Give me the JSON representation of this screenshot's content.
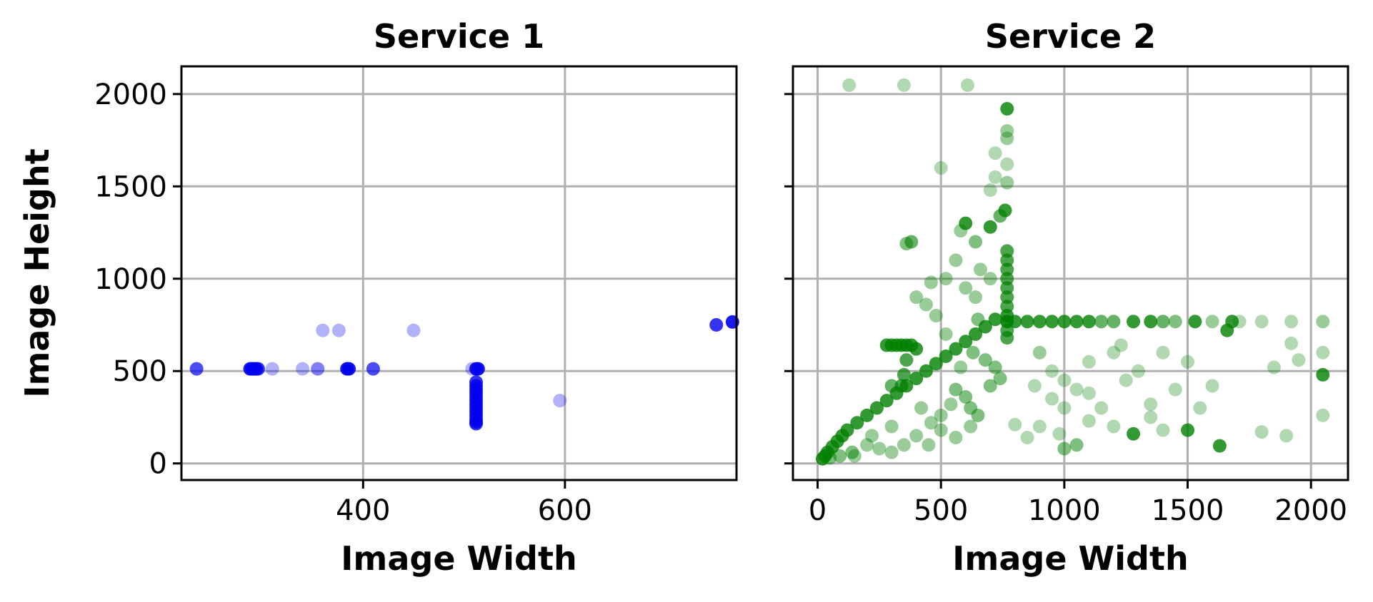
{
  "chart_data": [
    {
      "type": "scatter",
      "title": "Service 1",
      "xlabel": "Image Width",
      "ylabel": "Image Height",
      "xlim": [
        220,
        770
      ],
      "ylim": [
        -90,
        2150
      ],
      "xticks": [
        400,
        600
      ],
      "yticks": [
        0,
        500,
        1000,
        1500,
        2000
      ],
      "grid": true,
      "series": [
        {
          "color": "#0000ee",
          "points": [
            [
              235,
              512
            ],
            [
              288,
              512
            ],
            [
              290,
              512
            ],
            [
              292,
              512
            ],
            [
              294,
              512
            ],
            [
              296,
              512
            ],
            [
              310,
              512
            ],
            [
              340,
              512
            ],
            [
              355,
              512
            ],
            [
              360,
              720
            ],
            [
              376,
              720
            ],
            [
              384,
              512
            ],
            [
              386,
              512
            ],
            [
              410,
              512
            ],
            [
              450,
              720
            ],
            [
              508,
              512
            ],
            [
              512,
              512
            ],
            [
              514,
              512
            ],
            [
              512,
              440
            ],
            [
              512,
              420
            ],
            [
              512,
              400
            ],
            [
              512,
              380
            ],
            [
              512,
              360
            ],
            [
              512,
              340
            ],
            [
              512,
              320
            ],
            [
              512,
              300
            ],
            [
              512,
              280
            ],
            [
              512,
              260
            ],
            [
              512,
              240
            ],
            [
              512,
              225
            ],
            [
              512,
              215
            ],
            [
              595,
              340
            ],
            [
              750,
              750
            ],
            [
              766,
              766
            ]
          ],
          "opacities": [
            0.7,
            0.9,
            0.9,
            0.9,
            0.9,
            0.8,
            0.3,
            0.3,
            0.5,
            0.3,
            0.3,
            0.9,
            0.9,
            0.7,
            0.3,
            0.3,
            0.9,
            0.9,
            0.8,
            0.8,
            0.8,
            0.8,
            0.8,
            0.8,
            0.8,
            0.8,
            0.8,
            0.8,
            0.8,
            0.8,
            0.8,
            0.3,
            0.8,
            0.9
          ]
        }
      ]
    },
    {
      "type": "scatter",
      "title": "Service 2",
      "xlabel": "Image Width",
      "ylabel": "",
      "xlim": [
        -100,
        2150
      ],
      "ylim": [
        -90,
        2150
      ],
      "xticks": [
        0,
        500,
        1000,
        1500,
        2000
      ],
      "yticks": [
        0,
        500,
        1000,
        1500,
        2000
      ],
      "grid": true,
      "series": [
        {
          "color": "#007f00",
          "points": [
            [
              128,
              2048
            ],
            [
              350,
              2048
            ],
            [
              608,
              2048
            ],
            [
              768,
              1920
            ],
            [
              768,
              1800
            ],
            [
              768,
              1760
            ],
            [
              720,
              1680
            ],
            [
              768,
              1620
            ],
            [
              500,
              1600
            ],
            [
              720,
              1550
            ],
            [
              768,
              1520
            ],
            [
              700,
              1480
            ],
            [
              600,
              1300
            ],
            [
              760,
              1370
            ],
            [
              740,
              1340
            ],
            [
              580,
              1260
            ],
            [
              700,
              1280
            ],
            [
              640,
              1200
            ],
            [
              380,
              1200
            ],
            [
              360,
              1190
            ],
            [
              768,
              1150
            ],
            [
              768,
              1100
            ],
            [
              768,
              1050
            ],
            [
              768,
              1000
            ],
            [
              768,
              950
            ],
            [
              768,
              900
            ],
            [
              768,
              850
            ],
            [
              768,
              800
            ],
            [
              768,
              768
            ],
            [
              768,
              720
            ],
            [
              768,
              680
            ],
            [
              720,
              780
            ],
            [
              680,
              740
            ],
            [
              640,
              700
            ],
            [
              600,
              660
            ],
            [
              560,
              620
            ],
            [
              520,
              580
            ],
            [
              480,
              540
            ],
            [
              440,
              500
            ],
            [
              400,
              460
            ],
            [
              360,
              420
            ],
            [
              320,
              380
            ],
            [
              280,
              340
            ],
            [
              240,
              300
            ],
            [
              200,
              260
            ],
            [
              160,
              220
            ],
            [
              120,
              180
            ],
            [
              100,
              150
            ],
            [
              80,
              120
            ],
            [
              60,
              90
            ],
            [
              40,
              60
            ],
            [
              30,
              40
            ],
            [
              20,
              25
            ],
            [
              50,
              30
            ],
            [
              90,
              40
            ],
            [
              140,
              60
            ],
            [
              800,
              768
            ],
            [
              850,
              768
            ],
            [
              900,
              768
            ],
            [
              950,
              768
            ],
            [
              1000,
              768
            ],
            [
              1050,
              768
            ],
            [
              1100,
              768
            ],
            [
              1150,
              768
            ],
            [
              1200,
              768
            ],
            [
              1280,
              768
            ],
            [
              1350,
              768
            ],
            [
              1400,
              768
            ],
            [
              1450,
              768
            ],
            [
              1530,
              768
            ],
            [
              1600,
              768
            ],
            [
              1680,
              768
            ],
            [
              1710,
              768
            ],
            [
              1800,
              768
            ],
            [
              1920,
              768
            ],
            [
              2048,
              768
            ],
            [
              1660,
              720
            ],
            [
              280,
              640
            ],
            [
              300,
              640
            ],
            [
              320,
              640
            ],
            [
              340,
              640
            ],
            [
              360,
              640
            ],
            [
              380,
              640
            ],
            [
              400,
              620
            ],
            [
              360,
              560
            ],
            [
              350,
              480
            ],
            [
              340,
              420
            ],
            [
              300,
              420
            ],
            [
              640,
              900
            ],
            [
              650,
              780
            ],
            [
              630,
              600
            ],
            [
              560,
              400
            ],
            [
              600,
              360
            ],
            [
              620,
              300
            ],
            [
              650,
              260
            ],
            [
              700,
              420
            ],
            [
              740,
              460
            ],
            [
              720,
              520
            ],
            [
              680,
              560
            ],
            [
              500,
              260
            ],
            [
              460,
              220
            ],
            [
              420,
              300
            ],
            [
              540,
              320
            ],
            [
              580,
              520
            ],
            [
              520,
              700
            ],
            [
              480,
              800
            ],
            [
              440,
              860
            ],
            [
              460,
              980
            ],
            [
              400,
              900
            ],
            [
              520,
              1000
            ],
            [
              560,
              1100
            ],
            [
              600,
              950
            ],
            [
              660,
              1050
            ],
            [
              700,
              1000
            ],
            [
              900,
              600
            ],
            [
              950,
              500
            ],
            [
              1000,
              450
            ],
            [
              1050,
              400
            ],
            [
              1100,
              550
            ],
            [
              1150,
              300
            ],
            [
              1200,
              600
            ],
            [
              1250,
              450
            ],
            [
              1300,
              500
            ],
            [
              1350,
              250
            ],
            [
              1400,
              600
            ],
            [
              1450,
              400
            ],
            [
              1500,
              550
            ],
            [
              1550,
              300
            ],
            [
              1600,
              420
            ],
            [
              1900,
              150
            ],
            [
              1800,
              170
            ],
            [
              1630,
              95
            ],
            [
              1280,
              160
            ],
            [
              1200,
              200
            ],
            [
              1100,
              230
            ],
            [
              1050,
              100
            ],
            [
              1000,
              80
            ],
            [
              980,
              160
            ],
            [
              900,
              200
            ],
            [
              850,
              140
            ],
            [
              800,
              210
            ],
            [
              2048,
              480
            ],
            [
              2048,
              260
            ],
            [
              2048,
              600
            ],
            [
              1950,
              560
            ],
            [
              1920,
              650
            ],
            [
              1850,
              520
            ],
            [
              1400,
              180
            ],
            [
              1500,
              180
            ],
            [
              1350,
              320
            ],
            [
              1230,
              640
            ],
            [
              1100,
              380
            ],
            [
              1000,
              300
            ],
            [
              950,
              350
            ],
            [
              880,
              420
            ],
            [
              200,
              100
            ],
            [
              250,
              80
            ],
            [
              300,
              60
            ],
            [
              350,
              100
            ],
            [
              150,
              40
            ],
            [
              220,
              150
            ],
            [
              300,
              200
            ],
            [
              400,
              150
            ],
            [
              450,
              100
            ],
            [
              500,
              180
            ],
            [
              560,
              140
            ],
            [
              620,
              200
            ]
          ],
          "opacities": [
            0.3,
            0.3,
            0.3,
            0.8,
            0.4,
            0.4,
            0.3,
            0.3,
            0.3,
            0.3,
            0.4,
            0.3,
            0.8,
            0.8,
            0.6,
            0.4,
            0.8,
            0.5,
            0.6,
            0.5,
            0.7,
            0.7,
            0.7,
            0.7,
            0.7,
            0.7,
            0.7,
            0.8,
            0.9,
            0.7,
            0.7,
            0.8,
            0.8,
            0.8,
            0.8,
            0.8,
            0.8,
            0.8,
            0.8,
            0.8,
            0.8,
            0.8,
            0.8,
            0.8,
            0.8,
            0.8,
            0.8,
            0.8,
            0.8,
            0.8,
            0.8,
            0.8,
            0.8,
            0.5,
            0.5,
            0.5,
            0.8,
            0.8,
            0.8,
            0.8,
            0.8,
            0.8,
            0.8,
            0.6,
            0.6,
            0.8,
            0.8,
            0.6,
            0.5,
            0.8,
            0.4,
            0.8,
            0.3,
            0.3,
            0.3,
            0.4,
            0.8,
            0.8,
            0.8,
            0.8,
            0.8,
            0.8,
            0.8,
            0.8,
            0.7,
            0.7,
            0.7,
            0.6,
            0.4,
            0.5,
            0.5,
            0.5,
            0.5,
            0.5,
            0.5,
            0.5,
            0.5,
            0.5,
            0.5,
            0.4,
            0.4,
            0.4,
            0.4,
            0.4,
            0.4,
            0.4,
            0.4,
            0.4,
            0.4,
            0.4,
            0.4,
            0.4,
            0.4,
            0.4,
            0.4,
            0.3,
            0.3,
            0.3,
            0.3,
            0.3,
            0.3,
            0.3,
            0.3,
            0.3,
            0.3,
            0.3,
            0.3,
            0.3,
            0.3,
            0.3,
            0.3,
            0.8,
            0.8,
            0.3,
            0.3,
            0.5,
            0.5,
            0.3,
            0.3,
            0.3,
            0.3,
            0.8,
            0.3,
            0.3,
            0.3,
            0.3,
            0.3,
            0.3,
            0.8,
            0.3,
            0.3,
            0.3,
            0.3,
            0.3,
            0.3,
            0.4,
            0.4,
            0.4,
            0.4,
            0.4,
            0.4,
            0.4,
            0.4,
            0.4,
            0.4,
            0.4,
            0.4
          ]
        }
      ]
    }
  ]
}
